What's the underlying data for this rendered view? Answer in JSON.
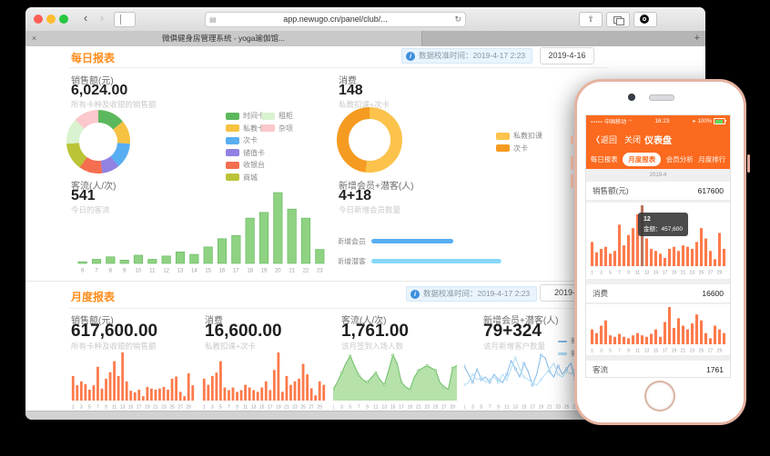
{
  "colors": {
    "accent_orange": "#ff8c1a",
    "phone_orange": "#fb6a1e",
    "bar_coral": "#fd7b4c",
    "bar_green": "#8fd282",
    "badge_blue": "#3d8edd"
  },
  "icons": {
    "back": "‹",
    "forward": "›",
    "page": "▤",
    "reload": "↻",
    "share": "⇧",
    "tab_close": "×",
    "new_tab": "+",
    "info": "i",
    "chevron_left": "〈",
    "signal_dots": "●●●●●",
    "wifi": "◠",
    "location": "➤"
  },
  "browser": {
    "url": "app.newugo.cn/panel/club/...",
    "tab_title": "微俱健身房管理系统 - yoga瑜伽馆..."
  },
  "daily": {
    "title": "每日报表",
    "calibration": "数据校准时间：2019-4-17 2:23",
    "date": "2019-4-16",
    "sales": {
      "label": "销售额(元)",
      "value": "6,024.00",
      "subtitle": "所有卡种及收银的销售额",
      "legend_col1": [
        {
          "label": "时间卡",
          "color": "#5cb85c"
        },
        {
          "label": "私教卡",
          "color": "#f6c243"
        },
        {
          "label": "次卡",
          "color": "#58aef2"
        },
        {
          "label": "储值卡",
          "color": "#9181e2"
        },
        {
          "label": "收银台",
          "color": "#f46e4f"
        },
        {
          "label": "商城",
          "color": "#bbc437"
        }
      ],
      "legend_col2": [
        {
          "label": "租柜",
          "color": "#d9f2cf"
        },
        {
          "label": "杂项",
          "color": "#fac8cd"
        }
      ]
    },
    "consume": {
      "label": "消费",
      "value": "148",
      "subtitle": "私教扣课+次卡",
      "legend": [
        {
          "label": "私教扣课",
          "color": "#fbc34b"
        },
        {
          "label": "次卡",
          "color": "#f59b22"
        }
      ]
    },
    "visitors": {
      "label": "客流(人/次)",
      "value": "541",
      "subtitle": "今日的客流"
    },
    "members": {
      "label": "新增会员+潜客(人)",
      "value": "4+18",
      "subtitle": "今日新增会员数量"
    }
  },
  "monthly": {
    "title": "月度报表",
    "calibration": "数据校准时间：2019-4-17 2:23",
    "date": "2019-4",
    "stats": [
      {
        "label": "销售额(元)",
        "value": "617,600.00",
        "subtitle": "所有卡种及收银的销售额"
      },
      {
        "label": "消费",
        "value": "16,600.00",
        "subtitle": "私教扣课+次卡"
      },
      {
        "label": "客流(人/次)",
        "value": "1,761.00",
        "subtitle": "该月签到入场人数"
      },
      {
        "label": "新增会员+潜客(人)",
        "value": "79+324",
        "subtitle": "该月新增客户数量"
      }
    ],
    "lines_legend": [
      {
        "label": "新增会员",
        "color": "#7fb8e8"
      },
      {
        "label": "新增潜客",
        "color": "#aedcf5"
      }
    ]
  },
  "phone": {
    "carrier": "中国移动",
    "time": "16:23",
    "battery": "100%",
    "back": "返回",
    "close": "关闭",
    "title": "仪表盘",
    "tabs": [
      {
        "label": "每日报表"
      },
      {
        "label": "月度报表"
      },
      {
        "label": "会员分析"
      },
      {
        "label": "月度排行"
      }
    ],
    "date": "2019-4",
    "rows": [
      {
        "label": "销售额(元)",
        "value": "617600"
      },
      {
        "label": "消费",
        "value": "16600"
      },
      {
        "label": "客流",
        "value": "1761"
      }
    ],
    "tooltip": {
      "line1": "12",
      "line2": "金额：457,600"
    }
  },
  "chart_data": [
    {
      "id": "daily-sales-donut",
      "type": "pie",
      "title": "销售额(元)",
      "outer_r": 35,
      "inner_r": 21,
      "segments": [
        {
          "label": "时间卡",
          "value": 14,
          "color": "#5cb85c"
        },
        {
          "label": "私教卡",
          "value": 12,
          "color": "#f6c243"
        },
        {
          "label": "次卡",
          "value": 13,
          "color": "#58aef2"
        },
        {
          "label": "储值卡",
          "value": 9,
          "color": "#9181e2"
        },
        {
          "label": "收银台",
          "value": 12,
          "color": "#f46e4f"
        },
        {
          "label": "商城",
          "value": 14,
          "color": "#bbc437"
        },
        {
          "label": "租柜",
          "value": 13,
          "color": "#d9f2cf"
        },
        {
          "label": "杂项",
          "value": 13,
          "color": "#fac8cd"
        }
      ]
    },
    {
      "id": "daily-consume-donut",
      "type": "pie",
      "title": "消费",
      "outer_r": 36,
      "inner_r": 23,
      "segments": [
        {
          "label": "私教扣课",
          "value": 52,
          "color": "#fbc34b"
        },
        {
          "label": "次卡",
          "value": 48,
          "color": "#f59b22"
        }
      ]
    },
    {
      "id": "daily-visitors-bars",
      "type": "bar",
      "title": "客流(人/次)",
      "color": "#8fd282",
      "stroke": "#62b55e",
      "label_size": 6,
      "label_every": 1,
      "categories": [
        "6",
        "7",
        "8",
        "9",
        "10",
        "11",
        "12",
        "13",
        "14",
        "15",
        "16",
        "17",
        "18",
        "19",
        "20",
        "21",
        "22",
        "23"
      ],
      "values": [
        2,
        5,
        8,
        4,
        10,
        5,
        9,
        14,
        11,
        20,
        30,
        34,
        55,
        62,
        86,
        66,
        55,
        17
      ]
    },
    {
      "id": "daily-members-hbar",
      "type": "hbar",
      "title": "新增会员+潜客(人)",
      "max_width": 170,
      "row_y": [
        14,
        36
      ],
      "rows": [
        {
          "label": "新增会员",
          "count": 4,
          "length": 0.53,
          "color": "#58aef2"
        },
        {
          "label": "新增潜客",
          "count": 18,
          "length": 0.84,
          "color": "#86d8f8"
        }
      ]
    },
    {
      "id": "monthly-sales-bars",
      "type": "bar",
      "title": "销售额(元)",
      "color": "#fd7b4c",
      "label_size": 5,
      "label_every": 2,
      "categories": [
        "1",
        "2",
        "3",
        "4",
        "5",
        "6",
        "7",
        "8",
        "9",
        "10",
        "11",
        "12",
        "13",
        "14",
        "15",
        "16",
        "17",
        "18",
        "19",
        "20",
        "21",
        "22",
        "23",
        "24",
        "25",
        "26",
        "27",
        "28",
        "29",
        "30"
      ],
      "values": [
        45,
        28,
        35,
        30,
        20,
        28,
        62,
        22,
        40,
        52,
        72,
        45,
        88,
        35,
        18,
        15,
        20,
        8,
        25,
        22,
        20,
        22,
        25,
        20,
        40,
        44,
        16,
        8,
        50,
        28
      ]
    },
    {
      "id": "monthly-consume-bars",
      "type": "bar",
      "title": "消费",
      "color": "#fd7b4c",
      "label_size": 5,
      "label_every": 2,
      "categories": [
        "1",
        "2",
        "3",
        "4",
        "5",
        "6",
        "7",
        "8",
        "9",
        "10",
        "11",
        "12",
        "13",
        "14",
        "15",
        "16",
        "17",
        "18",
        "19",
        "20",
        "21",
        "22",
        "23",
        "24",
        "25",
        "26",
        "27",
        "28",
        "29",
        "30"
      ],
      "values": [
        25,
        18,
        28,
        32,
        45,
        15,
        12,
        15,
        10,
        12,
        18,
        15,
        12,
        10,
        15,
        22,
        12,
        35,
        55,
        10,
        28,
        18,
        22,
        25,
        42,
        30,
        14,
        6,
        22,
        18
      ]
    },
    {
      "id": "monthly-visitors-area",
      "type": "area",
      "title": "客流(人/次)",
      "color": "#6cbf63",
      "fill": "#a9dc9c",
      "label_size": 5,
      "label_every": 2,
      "categories": [
        "1",
        "2",
        "3",
        "4",
        "5",
        "6",
        "7",
        "8",
        "9",
        "10",
        "11",
        "12",
        "13",
        "14",
        "15",
        "16",
        "17",
        "18",
        "19",
        "20",
        "21",
        "22",
        "23",
        "24",
        "25",
        "26",
        "27",
        "28",
        "29",
        "30"
      ],
      "values": [
        20,
        35,
        55,
        75,
        90,
        70,
        50,
        40,
        35,
        45,
        55,
        40,
        30,
        60,
        92,
        75,
        35,
        25,
        20,
        45,
        60,
        65,
        70,
        65,
        60,
        35,
        25,
        20,
        65,
        70
      ]
    },
    {
      "id": "monthly-members-lines",
      "type": "line",
      "title": "新增会员+潜客(人)",
      "label_size": 5,
      "label_every": 2,
      "categories": [
        "1",
        "2",
        "3",
        "4",
        "5",
        "6",
        "7",
        "8",
        "9",
        "10",
        "11",
        "12",
        "13",
        "14",
        "15",
        "16",
        "17",
        "18",
        "19",
        "20",
        "21",
        "22",
        "23",
        "24",
        "25",
        "26",
        "27",
        "28",
        "29",
        "30"
      ],
      "series": [
        {
          "name": "新增会员",
          "color": "#7fb8e8",
          "values": [
            60,
            45,
            30,
            55,
            35,
            40,
            30,
            45,
            35,
            30,
            45,
            70,
            55,
            40,
            65,
            50,
            25,
            45,
            80,
            75,
            50,
            40,
            60,
            45,
            55,
            65,
            35,
            50,
            45,
            55
          ]
        },
        {
          "name": "新增潜客",
          "color": "#aedcf5",
          "values": [
            25,
            30,
            45,
            35,
            40,
            30,
            35,
            40,
            30,
            45,
            35,
            55,
            75,
            55,
            40,
            35,
            30,
            25,
            35,
            45,
            55,
            65,
            45,
            40,
            50,
            45,
            55,
            40,
            35,
            45
          ]
        }
      ]
    },
    {
      "id": "phone-sales-bars",
      "type": "bar",
      "title": "销售额(元)",
      "color": "#fd7b4c",
      "highlight_index": 11,
      "highlight_color": "#b8755a",
      "label_size": 5,
      "label_every": 2,
      "categories": [
        "1",
        "2",
        "3",
        "4",
        "5",
        "6",
        "7",
        "8",
        "9",
        "10",
        "11",
        "12",
        "13",
        "14",
        "15",
        "16",
        "17",
        "18",
        "19",
        "20",
        "21",
        "22",
        "23",
        "24",
        "25",
        "26",
        "27",
        "28",
        "29",
        "30"
      ],
      "values": [
        35,
        20,
        25,
        28,
        18,
        22,
        60,
        30,
        45,
        55,
        75,
        88,
        40,
        25,
        22,
        18,
        12,
        25,
        28,
        22,
        30,
        28,
        25,
        35,
        55,
        40,
        22,
        10,
        48,
        25
      ]
    },
    {
      "id": "phone-consume-bars",
      "type": "bar",
      "title": "消费",
      "color": "#fd7b4c",
      "label_size": 5,
      "label_every": 2,
      "categories": [
        "1",
        "2",
        "3",
        "4",
        "5",
        "6",
        "7",
        "8",
        "9",
        "10",
        "11",
        "12",
        "13",
        "14",
        "15",
        "16",
        "17",
        "18",
        "19",
        "20",
        "21",
        "22",
        "23",
        "24",
        "25",
        "26",
        "27",
        "28",
        "29",
        "30"
      ],
      "values": [
        20,
        15,
        25,
        32,
        12,
        10,
        14,
        10,
        8,
        12,
        15,
        12,
        10,
        14,
        20,
        10,
        30,
        50,
        22,
        35,
        25,
        20,
        28,
        40,
        32,
        15,
        8,
        25,
        20,
        15
      ]
    }
  ]
}
